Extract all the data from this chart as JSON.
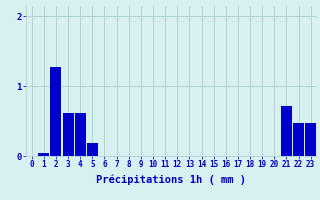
{
  "hours": [
    0,
    1,
    2,
    3,
    4,
    5,
    6,
    7,
    8,
    9,
    10,
    11,
    12,
    13,
    14,
    15,
    16,
    17,
    18,
    19,
    20,
    21,
    22,
    23
  ],
  "values": [
    0,
    0.05,
    1.28,
    0.62,
    0.62,
    0.18,
    0,
    0,
    0,
    0,
    0,
    0,
    0,
    0,
    0,
    0,
    0,
    0,
    0,
    0,
    0,
    0.72,
    0.48,
    0.48
  ],
  "bar_color": "#0000cc",
  "background_color": "#d8f0f0",
  "grid_color": "#aacece",
  "axis_label_color": "#0000bb",
  "tick_color": "#0000bb",
  "xlabel": "Précipitations 1h ( mm )",
  "ylim": [
    0,
    2.15
  ],
  "yticks": [
    0,
    1,
    2
  ],
  "bar_width": 0.9,
  "xlabel_fontsize": 7.5,
  "tick_fontsize": 5.5
}
